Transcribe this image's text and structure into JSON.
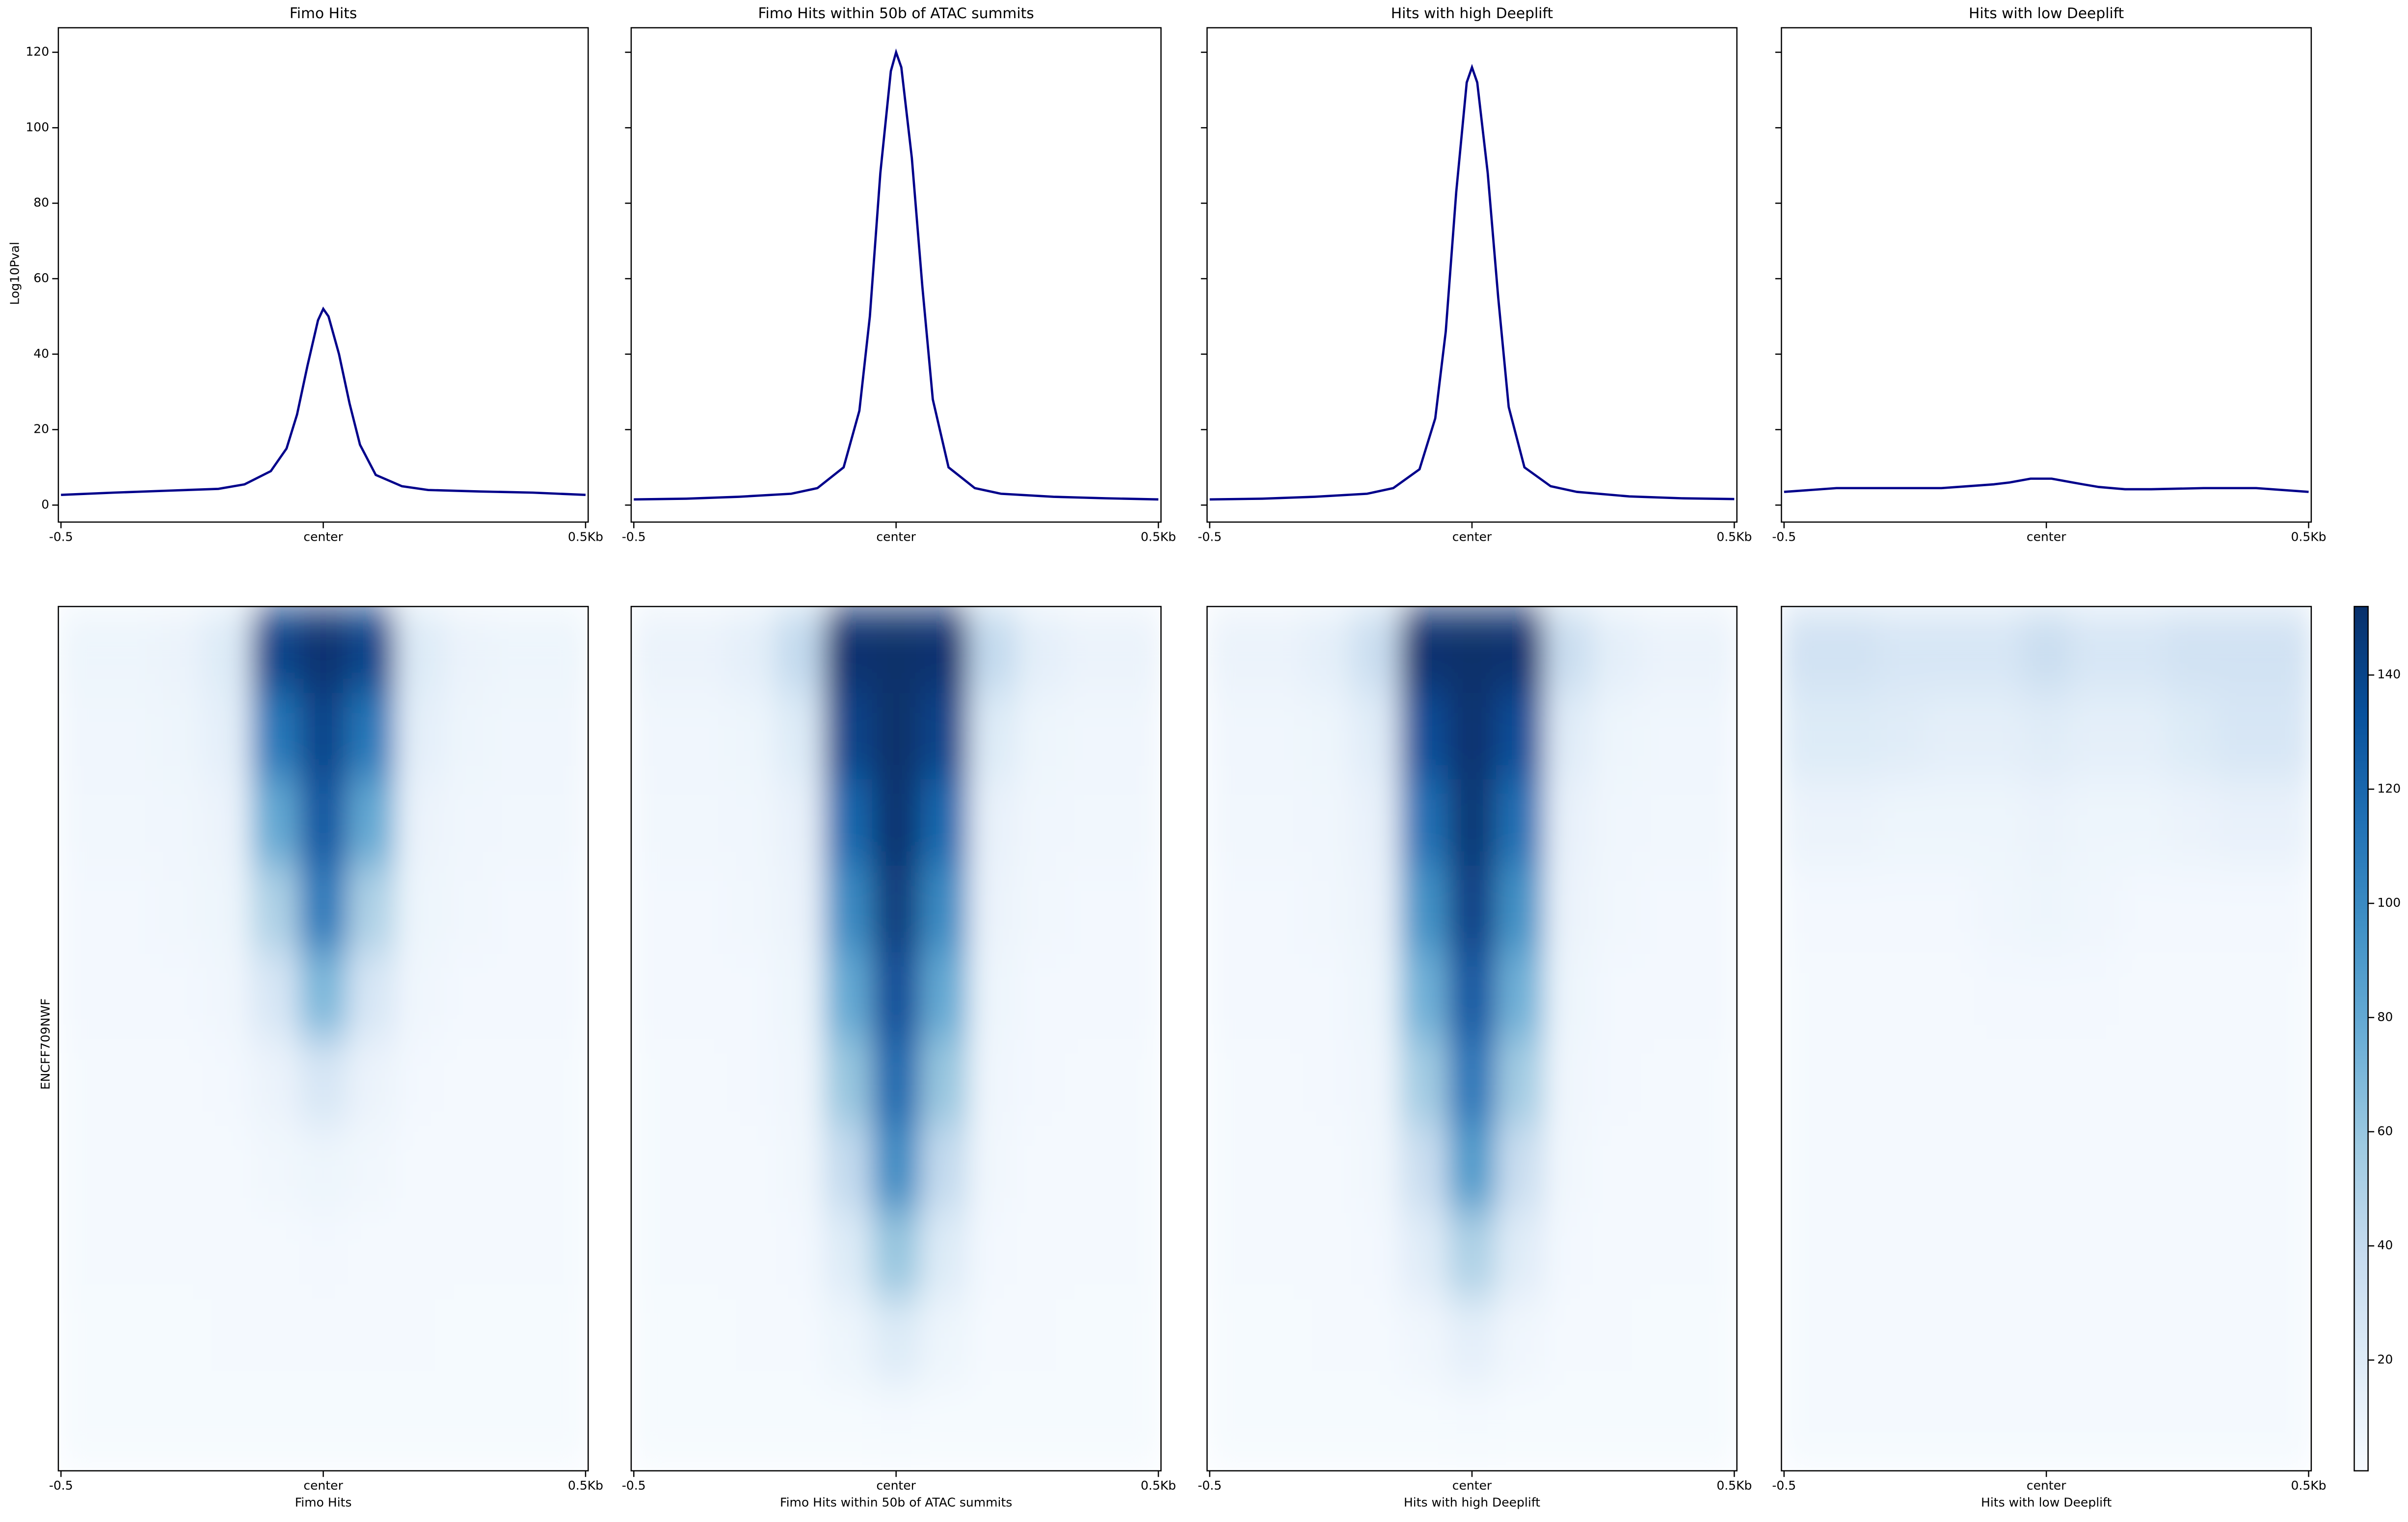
{
  "chart_data": [
    {
      "type": "line",
      "title": "Fimo Hits",
      "ylabel": "Log10Pval",
      "color": "#00008b",
      "x": [
        -0.5,
        -0.4,
        -0.3,
        -0.2,
        -0.15,
        -0.1,
        -0.07,
        -0.05,
        -0.03,
        -0.01,
        0,
        0.01,
        0.03,
        0.05,
        0.07,
        0.1,
        0.15,
        0.2,
        0.3,
        0.4,
        0.5
      ],
      "values": [
        2.7,
        3.3,
        3.8,
        4.3,
        5.5,
        9,
        15,
        24,
        37,
        49,
        52,
        50,
        40,
        27,
        16,
        8,
        5,
        4,
        3.6,
        3.3,
        2.7
      ],
      "xlim": [
        -0.505,
        0.505
      ],
      "ylim": [
        -4.5,
        126.5
      ],
      "yticks": [
        0,
        20,
        40,
        60,
        80,
        100,
        120
      ],
      "xticks": [
        {
          "value": -0.5,
          "label": "-0.5"
        },
        {
          "value": 0,
          "label": "center"
        },
        {
          "value": 0.5,
          "label": "0.5Kb"
        }
      ]
    },
    {
      "type": "line",
      "title": "Fimo Hits within 50b of ATAC summits",
      "color": "#00008b",
      "x": [
        -0.5,
        -0.4,
        -0.3,
        -0.2,
        -0.15,
        -0.1,
        -0.07,
        -0.05,
        -0.03,
        -0.01,
        0,
        0.01,
        0.03,
        0.05,
        0.07,
        0.1,
        0.15,
        0.2,
        0.3,
        0.4,
        0.5
      ],
      "values": [
        1.5,
        1.7,
        2.2,
        3,
        4.5,
        10,
        25,
        50,
        88,
        115,
        120,
        116,
        92,
        58,
        28,
        10,
        4.5,
        3,
        2.2,
        1.8,
        1.5
      ],
      "xlim": [
        -0.505,
        0.505
      ],
      "ylim": [
        -4.5,
        126.5
      ],
      "xticks": [
        {
          "value": -0.5,
          "label": "-0.5"
        },
        {
          "value": 0,
          "label": "center"
        },
        {
          "value": 0.5,
          "label": "0.5Kb"
        }
      ]
    },
    {
      "type": "line",
      "title": "Hits with high Deeplift",
      "color": "#00008b",
      "x": [
        -0.5,
        -0.4,
        -0.3,
        -0.2,
        -0.15,
        -0.1,
        -0.07,
        -0.05,
        -0.03,
        -0.01,
        0,
        0.01,
        0.03,
        0.05,
        0.07,
        0.1,
        0.15,
        0.2,
        0.3,
        0.4,
        0.5
      ],
      "values": [
        1.5,
        1.7,
        2.2,
        3,
        4.5,
        9.5,
        23,
        46,
        83,
        112,
        116,
        112,
        88,
        55,
        26,
        10,
        5,
        3.5,
        2.3,
        1.8,
        1.6
      ],
      "xlim": [
        -0.505,
        0.505
      ],
      "ylim": [
        -4.5,
        126.5
      ],
      "xticks": [
        {
          "value": -0.5,
          "label": "-0.5"
        },
        {
          "value": 0,
          "label": "center"
        },
        {
          "value": 0.5,
          "label": "0.5Kb"
        }
      ]
    },
    {
      "type": "line",
      "title": "Hits with low Deeplift",
      "color": "#00008b",
      "x": [
        -0.5,
        -0.4,
        -0.3,
        -0.2,
        -0.15,
        -0.1,
        -0.07,
        -0.05,
        -0.03,
        -0.01,
        0,
        0.01,
        0.03,
        0.05,
        0.07,
        0.1,
        0.15,
        0.2,
        0.3,
        0.4,
        0.5
      ],
      "values": [
        3.5,
        4.5,
        4.5,
        4.5,
        5,
        5.5,
        6,
        6.5,
        7,
        7,
        7,
        7,
        6.5,
        6,
        5.5,
        4.8,
        4.2,
        4.2,
        4.5,
        4.5,
        3.5
      ],
      "xlim": [
        -0.505,
        0.505
      ],
      "ylim": [
        -4.5,
        126.5
      ],
      "xticks": [
        {
          "value": -0.5,
          "label": "-0.5"
        },
        {
          "value": 0,
          "label": "center"
        },
        {
          "value": 0.5,
          "label": "0.5Kb"
        }
      ]
    },
    {
      "type": "heatmap",
      "xlabel": "Fimo Hits",
      "ylabel": "ENCFF709NWF",
      "colormap": "Blues",
      "xticks": [
        {
          "value": -0.5,
          "label": "-0.5"
        },
        {
          "value": 0,
          "label": "center"
        },
        {
          "value": 0.5,
          "label": "0.5Kb"
        }
      ],
      "values": [
        [
          8,
          8,
          10,
          20,
          140,
          150,
          140,
          20,
          10,
          8,
          8
        ],
        [
          6,
          6,
          8,
          15,
          110,
          140,
          110,
          15,
          8,
          6,
          6
        ],
        [
          5,
          5,
          6,
          10,
          80,
          130,
          80,
          10,
          6,
          5,
          5
        ],
        [
          4,
          4,
          5,
          8,
          50,
          110,
          50,
          8,
          5,
          4,
          4
        ],
        [
          4,
          4,
          4,
          6,
          25,
          70,
          25,
          6,
          4,
          4,
          4
        ],
        [
          3,
          3,
          3,
          4,
          10,
          25,
          10,
          4,
          3,
          3,
          3
        ],
        [
          3,
          3,
          3,
          3,
          5,
          8,
          5,
          3,
          3,
          3,
          3
        ],
        [
          3,
          3,
          3,
          3,
          3,
          4,
          3,
          3,
          3,
          3,
          3
        ],
        [
          2,
          2,
          2,
          3,
          3,
          3,
          3,
          3,
          2,
          2,
          2
        ],
        [
          2,
          2,
          2,
          2,
          2,
          2,
          2,
          2,
          2,
          2,
          2
        ]
      ]
    },
    {
      "type": "heatmap",
      "xlabel": "Fimo Hits within 50b of ATAC summits",
      "colormap": "Blues",
      "xticks": [
        {
          "value": -0.5,
          "label": "-0.5"
        },
        {
          "value": 0,
          "label": "center"
        },
        {
          "value": 0.5,
          "label": "0.5Kb"
        }
      ],
      "values": [
        [
          10,
          10,
          15,
          40,
          150,
          152,
          150,
          40,
          15,
          10,
          10
        ],
        [
          6,
          6,
          8,
          20,
          140,
          152,
          140,
          20,
          8,
          6,
          6
        ],
        [
          5,
          5,
          6,
          12,
          120,
          150,
          120,
          12,
          6,
          5,
          5
        ],
        [
          4,
          4,
          5,
          10,
          100,
          145,
          100,
          10,
          5,
          4,
          4
        ],
        [
          4,
          4,
          4,
          8,
          80,
          135,
          80,
          8,
          4,
          4,
          4
        ],
        [
          3,
          3,
          4,
          6,
          60,
          120,
          60,
          6,
          4,
          3,
          3
        ],
        [
          3,
          3,
          3,
          5,
          40,
          100,
          40,
          5,
          3,
          3,
          3
        ],
        [
          3,
          3,
          3,
          4,
          20,
          60,
          20,
          4,
          3,
          3,
          3
        ],
        [
          2,
          2,
          3,
          3,
          8,
          20,
          8,
          3,
          3,
          2,
          2
        ],
        [
          2,
          2,
          2,
          2,
          2,
          3,
          2,
          2,
          2,
          2,
          2
        ]
      ]
    },
    {
      "type": "heatmap",
      "xlabel": "Hits with high Deeplift",
      "colormap": "Blues",
      "xticks": [
        {
          "value": -0.5,
          "label": "-0.5"
        },
        {
          "value": 0,
          "label": "center"
        },
        {
          "value": 0.5,
          "label": "0.5Kb"
        }
      ],
      "values": [
        [
          10,
          10,
          15,
          35,
          150,
          152,
          150,
          35,
          15,
          10,
          10
        ],
        [
          6,
          6,
          8,
          18,
          135,
          150,
          135,
          18,
          8,
          6,
          6
        ],
        [
          5,
          5,
          6,
          12,
          115,
          148,
          115,
          12,
          6,
          5,
          5
        ],
        [
          4,
          4,
          5,
          10,
          95,
          142,
          95,
          10,
          5,
          4,
          4
        ],
        [
          4,
          4,
          4,
          8,
          75,
          130,
          75,
          8,
          4,
          4,
          4
        ],
        [
          3,
          3,
          4,
          6,
          55,
          112,
          55,
          6,
          4,
          3,
          3
        ],
        [
          3,
          3,
          3,
          5,
          35,
          90,
          35,
          5,
          3,
          3,
          3
        ],
        [
          3,
          3,
          3,
          4,
          18,
          50,
          18,
          4,
          3,
          3,
          3
        ],
        [
          2,
          2,
          3,
          3,
          6,
          15,
          6,
          3,
          3,
          2,
          2
        ],
        [
          2,
          2,
          2,
          2,
          2,
          3,
          2,
          2,
          2,
          2,
          2
        ]
      ]
    },
    {
      "type": "heatmap",
      "xlabel": "Hits with low Deeplift",
      "colormap": "Blues",
      "xticks": [
        {
          "value": -0.5,
          "label": "-0.5"
        },
        {
          "value": 0,
          "label": "center"
        },
        {
          "value": 0.5,
          "label": "0.5Kb"
        }
      ],
      "values": [
        [
          30,
          30,
          25,
          25,
          25,
          35,
          25,
          25,
          30,
          30,
          30
        ],
        [
          20,
          20,
          18,
          15,
          15,
          18,
          15,
          15,
          20,
          25,
          25
        ],
        [
          10,
          10,
          8,
          8,
          8,
          10,
          8,
          8,
          10,
          12,
          12
        ],
        [
          4,
          4,
          4,
          4,
          6,
          8,
          6,
          4,
          4,
          4,
          4
        ],
        [
          3,
          3,
          3,
          3,
          4,
          4,
          4,
          3,
          3,
          3,
          3
        ],
        [
          3,
          3,
          3,
          3,
          3,
          3,
          3,
          3,
          3,
          3,
          3
        ],
        [
          3,
          3,
          3,
          3,
          3,
          3,
          3,
          3,
          3,
          3,
          3
        ],
        [
          3,
          3,
          3,
          3,
          3,
          3,
          3,
          3,
          3,
          3,
          3
        ],
        [
          3,
          3,
          3,
          3,
          3,
          3,
          3,
          3,
          3,
          3,
          3
        ],
        [
          3,
          3,
          3,
          3,
          3,
          3,
          3,
          3,
          3,
          3,
          3
        ]
      ],
      "zlim": [
        0.6,
        152
      ],
      "zticks": [
        20,
        40,
        60,
        80,
        100,
        120,
        140
      ]
    }
  ]
}
